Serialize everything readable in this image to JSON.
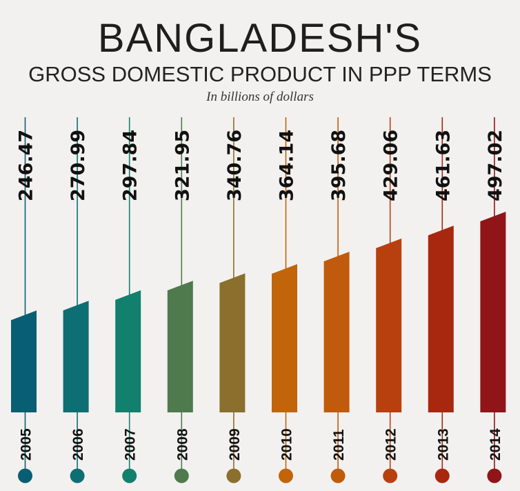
{
  "header": {
    "title": "BANGLADESH'S",
    "subtitle": "GROSS DOMESTIC PRODUCT IN PPP TERMS",
    "unit": "In billions of dollars"
  },
  "chart_data": {
    "type": "bar",
    "title": "BANGLADESH'S GROSS DOMESTIC PRODUCT IN PPP TERMS",
    "ylabel": "In billions of dollars",
    "categories": [
      "2005",
      "2006",
      "2007",
      "2008",
      "2009",
      "2010",
      "2011",
      "2012",
      "2013",
      "2014"
    ],
    "values": [
      246.47,
      270.99,
      297.84,
      321.95,
      340.76,
      364.14,
      395.68,
      429.06,
      461.63,
      497.02
    ],
    "value_labels": [
      "246.47",
      "270.99",
      "297.84",
      "321.95",
      "340.76",
      "364.14",
      "395.68",
      "429.06",
      "461.63",
      "497.02"
    ],
    "colors": [
      "#085e73",
      "#0d6e74",
      "#11806c",
      "#4e7a4d",
      "#8a6f2d",
      "#c2640a",
      "#c05a0c",
      "#b8400f",
      "#a8280f",
      "#901518"
    ],
    "grid": false,
    "legend": "none"
  }
}
